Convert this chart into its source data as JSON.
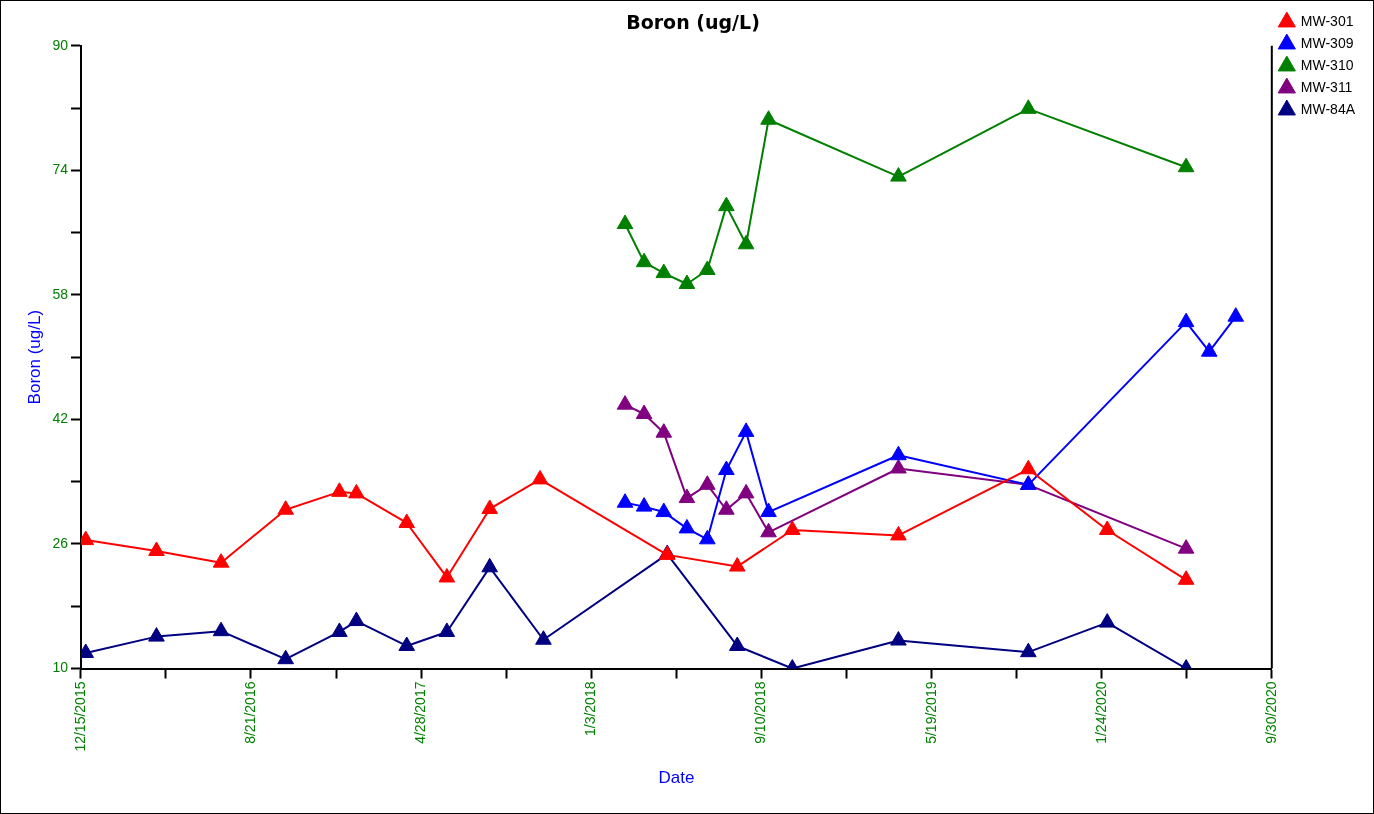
{
  "chart_data": {
    "type": "line",
    "title": "Boron (ug/L)",
    "xlabel": "Date",
    "ylabel": "Boron (ug/L)",
    "xlim": [
      "2015-12-15",
      "2020-09-30"
    ],
    "xticks": [
      {
        "value": "2015-12-15",
        "label": "12/15/2015"
      },
      {
        "value": "2016-04-18",
        "label": null
      },
      {
        "value": "2016-08-21",
        "label": "8/21/2016"
      },
      {
        "value": "2016-12-24",
        "label": null
      },
      {
        "value": "2017-04-28",
        "label": "4/28/2017"
      },
      {
        "value": "2017-08-31",
        "label": null
      },
      {
        "value": "2018-01-03",
        "label": "1/3/2018"
      },
      {
        "value": "2018-05-08",
        "label": null
      },
      {
        "value": "2018-09-10",
        "label": "9/10/2018"
      },
      {
        "value": "2019-01-13",
        "label": null
      },
      {
        "value": "2019-05-19",
        "label": "5/19/2019"
      },
      {
        "value": "2019-09-21",
        "label": null
      },
      {
        "value": "2020-01-24",
        "label": "1/24/2020"
      },
      {
        "value": "2020-05-28",
        "label": null
      },
      {
        "value": "2020-09-30",
        "label": "9/30/2020"
      }
    ],
    "ylim": [
      10,
      90
    ],
    "yticks": [
      10,
      {
        "value": 18,
        "label": null
      },
      26,
      {
        "value": 34,
        "label": null
      },
      42,
      {
        "value": 50,
        "label": null
      },
      58,
      {
        "value": 66,
        "label": null
      },
      74,
      {
        "value": 82,
        "label": null
      },
      90
    ],
    "grid": false,
    "legend": "top right",
    "marker": "triangle",
    "line_style": "solid",
    "series": [
      {
        "name": "MW-301",
        "color": "#ff0000",
        "x": [
          "2015-12-22",
          "2016-04-04",
          "2016-07-08",
          "2016-10-11",
          "2016-12-29",
          "2017-01-23",
          "2017-04-07",
          "2017-06-05",
          "2017-08-07",
          "2017-10-20",
          "2018-04-25",
          "2018-08-06",
          "2018-10-26",
          "2019-03-31",
          "2019-10-08",
          "2020-02-01",
          "2020-05-27"
        ],
        "values": [
          26.5,
          25.1,
          23.6,
          30.4,
          32.7,
          32.5,
          28.7,
          21.7,
          30.5,
          34.3,
          24.6,
          23.1,
          27.8,
          27.1,
          35.6,
          27.8,
          21.4
        ]
      },
      {
        "name": "MW-309",
        "color": "#0000ff",
        "x": [
          "2018-02-22",
          "2018-03-22",
          "2018-04-20",
          "2018-05-24",
          "2018-06-23",
          "2018-07-21",
          "2018-08-19",
          "2018-09-21",
          "2019-03-31",
          "2019-10-08",
          "2020-05-27",
          "2020-06-30",
          "2020-08-08"
        ],
        "values": [
          31.3,
          30.8,
          30.1,
          28.0,
          26.6,
          35.5,
          40.4,
          30.1,
          37.4,
          33.6,
          54.5,
          50.7,
          55.2
        ]
      },
      {
        "name": "MW-310",
        "color": "#008000",
        "x": [
          "2018-02-22",
          "2018-03-22",
          "2018-04-20",
          "2018-05-24",
          "2018-06-23",
          "2018-07-21",
          "2018-08-19",
          "2018-09-21",
          "2019-03-31",
          "2019-10-08",
          "2020-05-27"
        ],
        "values": [
          67.1,
          62.2,
          60.8,
          59.4,
          61.2,
          69.4,
          64.5,
          80.5,
          73.2,
          81.9,
          74.4
        ]
      },
      {
        "name": "MW-311",
        "color": "#800080",
        "x": [
          "2018-02-22",
          "2018-03-22",
          "2018-04-20",
          "2018-05-24",
          "2018-06-23",
          "2018-07-21",
          "2018-08-19",
          "2018-09-21",
          "2019-03-31",
          "2019-10-08",
          "2020-05-27"
        ],
        "values": [
          43.9,
          42.7,
          40.3,
          31.9,
          33.6,
          30.4,
          32.5,
          27.5,
          35.7,
          33.6,
          25.4
        ]
      },
      {
        "name": "MW-84A",
        "color": "#000080",
        "x": [
          "2015-12-22",
          "2016-04-04",
          "2016-07-08",
          "2016-10-11",
          "2016-12-29",
          "2017-01-23",
          "2017-04-07",
          "2017-06-05",
          "2017-08-07",
          "2017-10-25",
          "2018-04-25",
          "2018-08-06",
          "2018-10-26",
          "2019-03-31",
          "2019-10-08",
          "2020-02-01",
          "2020-05-27"
        ],
        "values": [
          12.0,
          14.1,
          14.8,
          11.2,
          14.7,
          16.1,
          12.9,
          14.7,
          23.0,
          13.7,
          24.7,
          12.9,
          10,
          13.6,
          12.1,
          15.9,
          10
        ]
      }
    ]
  }
}
